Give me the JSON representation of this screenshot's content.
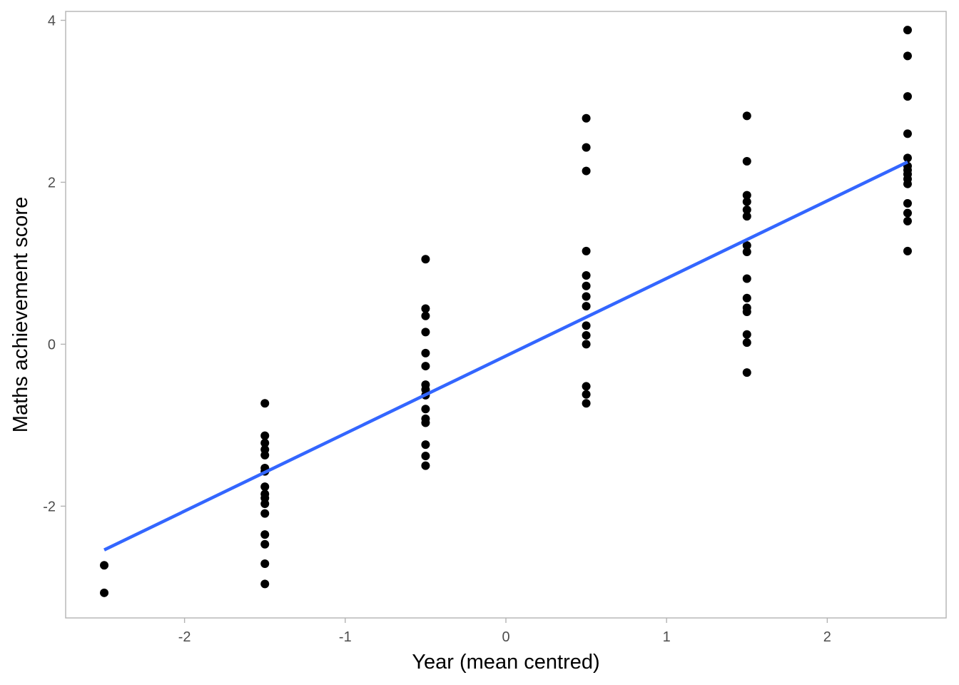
{
  "chart_data": {
    "type": "scatter",
    "title": "",
    "xlabel": "Year (mean centred)",
    "ylabel": "Maths achievement score",
    "xlim": [
      -2.74,
      2.74
    ],
    "ylim": [
      -3.38,
      4.11
    ],
    "x_ticks": [
      -2,
      -1,
      0,
      1,
      2
    ],
    "x_tick_labels": [
      "-2",
      "-1",
      "0",
      "1",
      "2"
    ],
    "y_ticks": [
      -2,
      0,
      2,
      4
    ],
    "y_tick_labels": [
      "-2",
      "0",
      "2",
      "4"
    ],
    "grid": false,
    "legend": "none",
    "point_color": "#000000",
    "line_color": "#3366ff",
    "frame_color": "#b3b3b3",
    "points": [
      {
        "x": -2.5,
        "ys": [
          -2.73,
          -3.07
        ]
      },
      {
        "x": -1.5,
        "ys": [
          -0.73,
          -1.13,
          -1.22,
          -1.3,
          -1.37,
          -1.53,
          -1.57,
          -1.76,
          -1.85,
          -1.9,
          -1.97,
          -2.09,
          -2.35,
          -2.47,
          -2.71,
          -2.96
        ]
      },
      {
        "x": -0.5,
        "ys": [
          1.05,
          0.44,
          0.35,
          0.15,
          -0.11,
          -0.27,
          -0.5,
          -0.56,
          -0.63,
          -0.8,
          -0.92,
          -0.97,
          -1.24,
          -1.38,
          -1.5
        ]
      },
      {
        "x": 0.5,
        "ys": [
          2.79,
          2.43,
          2.14,
          1.15,
          0.85,
          0.72,
          0.59,
          0.47,
          0.23,
          0.11,
          0.0,
          -0.52,
          -0.62,
          -0.73
        ]
      },
      {
        "x": 1.5,
        "ys": [
          2.82,
          2.26,
          1.84,
          1.76,
          1.66,
          1.58,
          1.22,
          1.14,
          0.81,
          0.57,
          0.45,
          0.4,
          0.12,
          0.02,
          -0.35
        ]
      },
      {
        "x": 2.5,
        "ys": [
          3.88,
          3.56,
          3.06,
          2.6,
          2.3,
          2.2,
          2.15,
          2.1,
          2.04,
          1.98,
          1.74,
          1.62,
          1.52,
          1.15
        ]
      }
    ],
    "fit_line": {
      "x": [
        -2.5,
        2.5
      ],
      "y": [
        -2.54,
        2.25
      ]
    }
  }
}
